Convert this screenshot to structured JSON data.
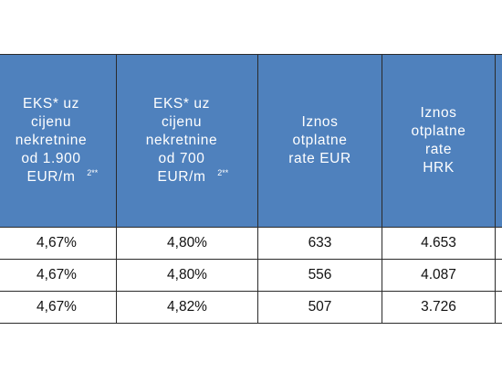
{
  "table": {
    "headers": [
      {
        "text": "EKS* uz\ncijenu\nnekretnine\nod 1.900\nEUR/m",
        "sup": "2**"
      },
      {
        "text": "EKS* uz\ncijenu\nnekretnine\nod 700\nEUR/m",
        "sup": "2**"
      },
      {
        "text": "Iznos\notplatne\nrate EUR",
        "sup": ""
      },
      {
        "text": "Iznos\notplatne\nrate\nHRK",
        "sup": ""
      },
      {
        "text": "",
        "sup": ""
      }
    ],
    "rows": [
      [
        "4,67%",
        "4,80%",
        "633",
        "4.653",
        ""
      ],
      [
        "4,67%",
        "4,80%",
        "556",
        "4.087",
        ""
      ],
      [
        "4,67%",
        "4,82%",
        "507",
        "3.726",
        ""
      ]
    ]
  },
  "colors": {
    "header_bg": "#4f81bd",
    "header_text": "#ffffff",
    "border": "#2b2b2b"
  }
}
